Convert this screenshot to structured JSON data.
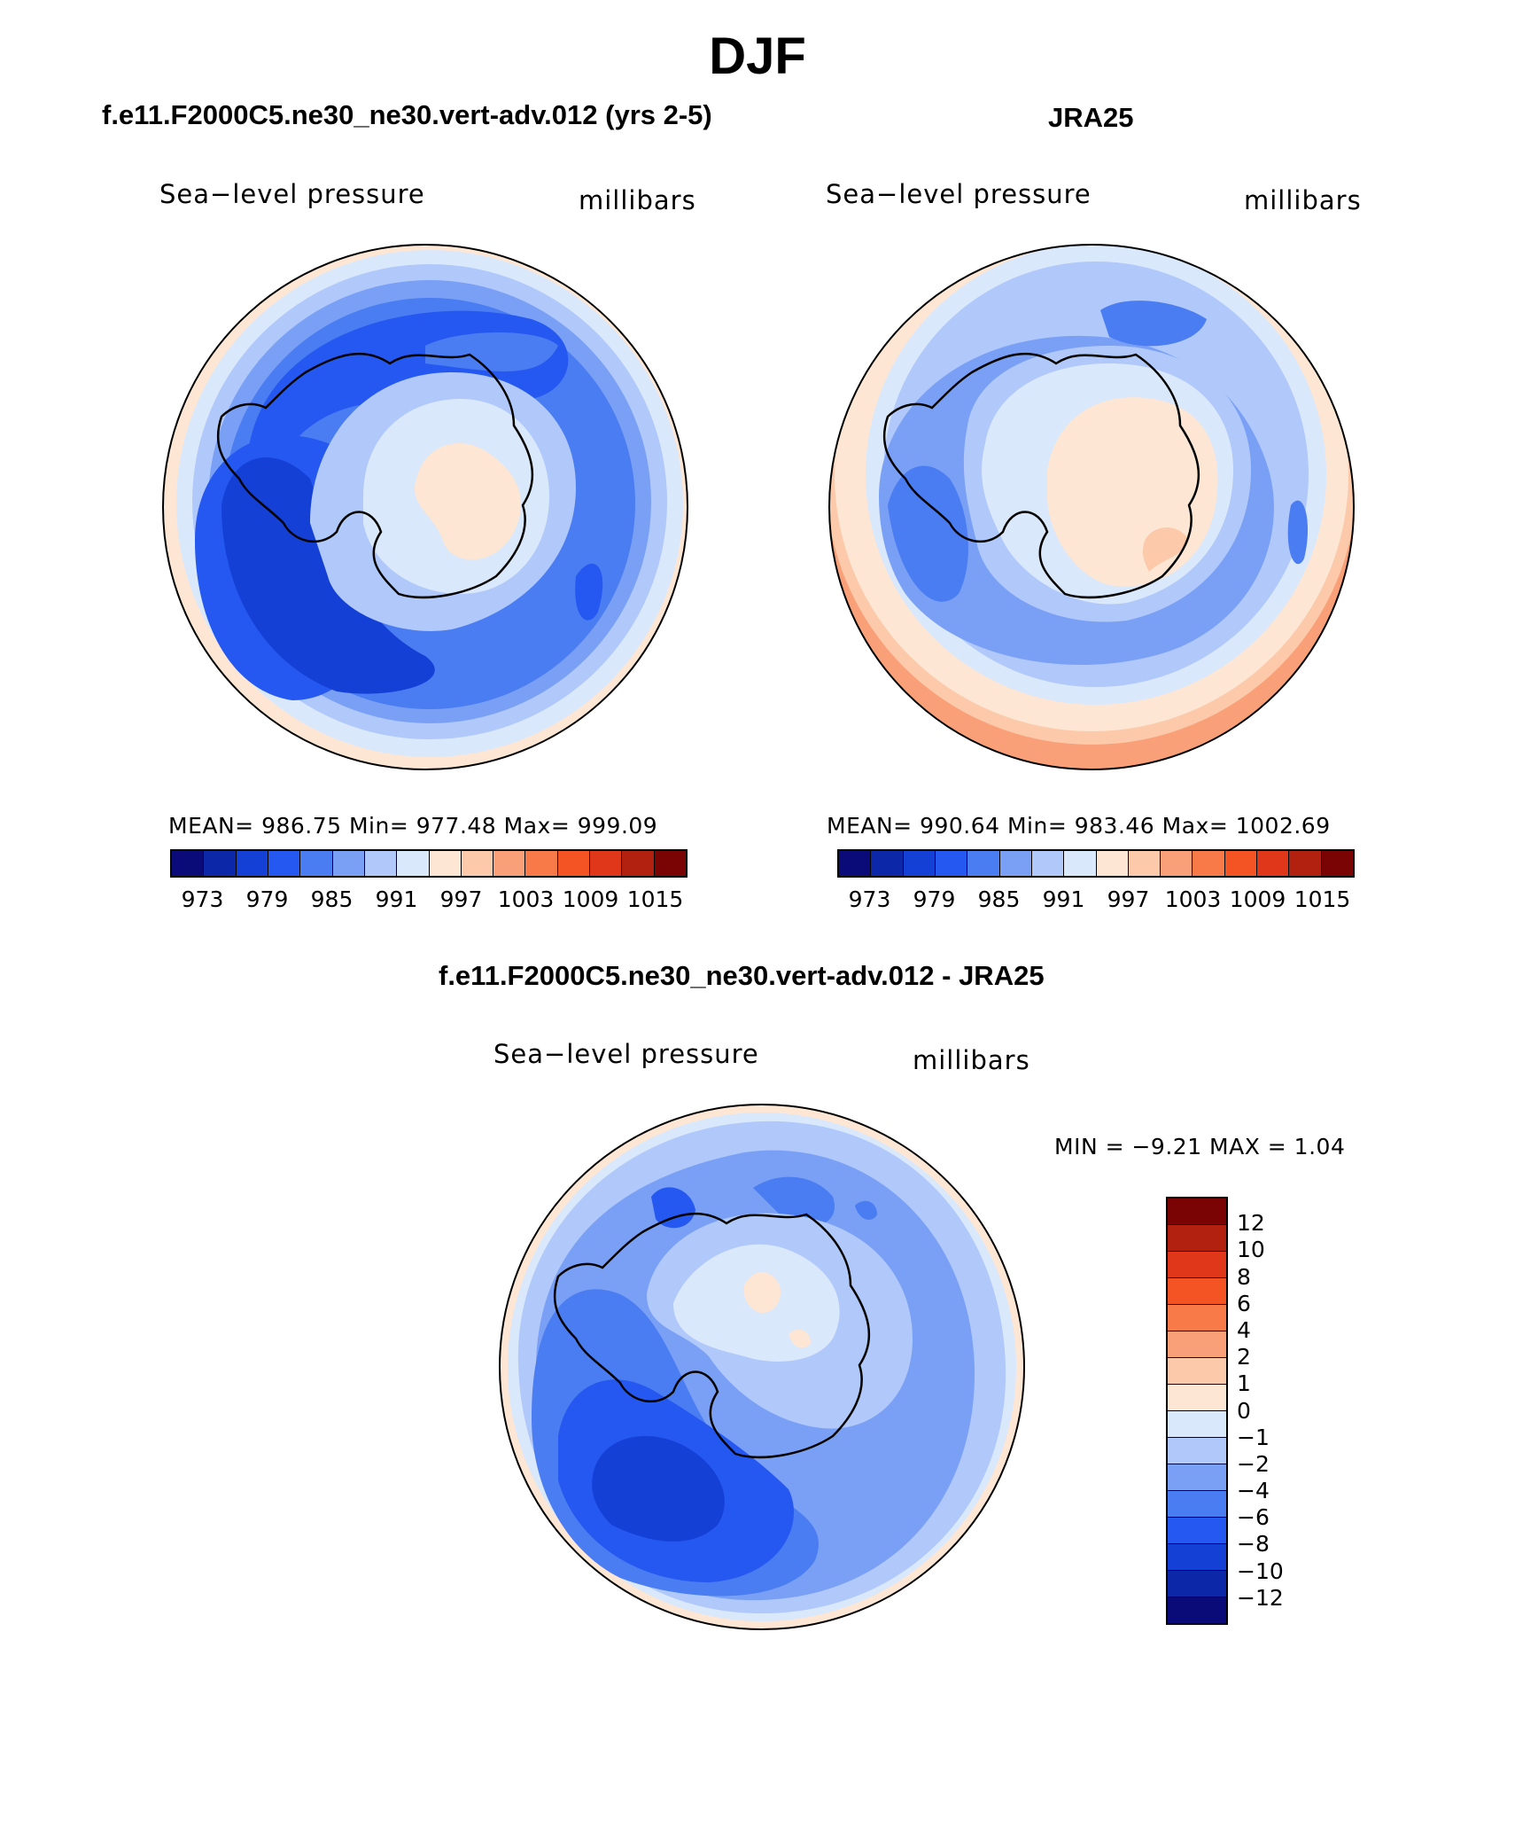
{
  "figure": {
    "title": "DJF"
  },
  "panels": {
    "model": {
      "title": "f.e11.F2000C5.ne30_ne30.vert-adv.012 (yrs 2-5)",
      "left_label": "Sea−level pressure",
      "right_label": "millibars",
      "stats": "MEAN= 986.75   Min= 977.48   Max= 999.09"
    },
    "obs": {
      "title": "JRA25",
      "left_label": "Sea−level pressure",
      "right_label": "millibars",
      "stats": "MEAN= 990.64   Min= 983.46   Max= 1002.69"
    },
    "diff": {
      "title": "f.e11.F2000C5.ne30_ne30.vert-adv.012 - JRA25",
      "left_label": "Sea−level pressure",
      "right_label": "millibars",
      "minmax": "MIN =   −9.21  MAX =     1.04"
    }
  },
  "colorbar_abs": {
    "colors": [
      "#0a0a78",
      "#0c28a8",
      "#1440d6",
      "#2458f0",
      "#4a7cf2",
      "#7aa0f6",
      "#b0c8fa",
      "#dae8fc",
      "#fde6d4",
      "#fccaaa",
      "#f9a078",
      "#f87a48",
      "#f45424",
      "#e0361a",
      "#b22010",
      "#7a0404"
    ],
    "tick_labels": [
      "973",
      "979",
      "985",
      "991",
      "997",
      "1003",
      "1009",
      "1015"
    ]
  },
  "colorbar_diff": {
    "colors_top_to_bottom": [
      "#7a0404",
      "#b22010",
      "#e0361a",
      "#f45424",
      "#f87a48",
      "#f9a078",
      "#fccaaa",
      "#fde6d4",
      "#dae8fc",
      "#b0c8fa",
      "#7aa0f6",
      "#4a7cf2",
      "#2458f0",
      "#1440d6",
      "#0c28a8",
      "#0a0a78"
    ],
    "tick_labels": [
      "12",
      "10",
      "8",
      "6",
      "4",
      "2",
      "1",
      "0",
      "−1",
      "−2",
      "−4",
      "−6",
      "−8",
      "−10",
      "−12"
    ]
  }
}
